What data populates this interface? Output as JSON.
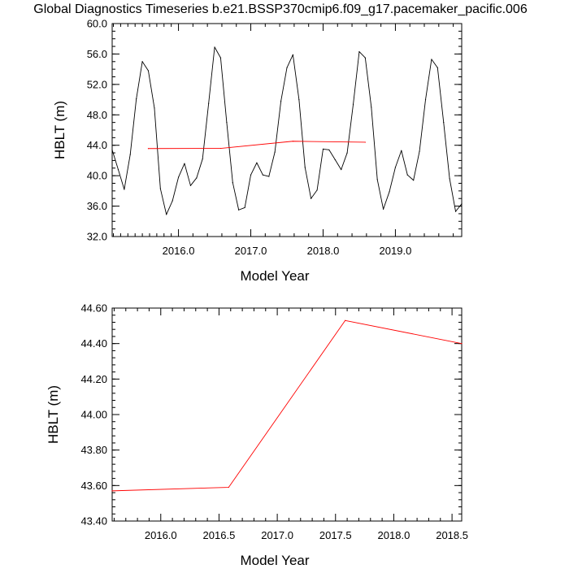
{
  "title": "Global Diagnostics Timeseries b.e21.BSSP370cmip6.f09_g17.pacemaker_pacific.006",
  "chart_data": [
    {
      "type": "line",
      "xlabel": "Model Year",
      "ylabel": "HBLT (m)",
      "xlim": [
        2015.083,
        2019.917
      ],
      "ylim": [
        32.0,
        60.0
      ],
      "x_ticks": [
        2016.0,
        2017.0,
        2018.0,
        2019.0
      ],
      "x_tick_labels": [
        "2016.0",
        "2017.0",
        "2018.0",
        "2019.0"
      ],
      "y_ticks": [
        32.0,
        36.0,
        40.0,
        44.0,
        48.0,
        52.0,
        56.0,
        60.0
      ],
      "y_tick_labels": [
        "32.0",
        "36.0",
        "40.0",
        "44.0",
        "48.0",
        "52.0",
        "56.0",
        "60.0"
      ],
      "grid": false,
      "series": [
        {
          "color": "#000000",
          "x": [
            2015.083,
            2015.167,
            2015.25,
            2015.333,
            2015.417,
            2015.5,
            2015.583,
            2015.667,
            2015.75,
            2015.833,
            2015.917,
            2016.0,
            2016.083,
            2016.167,
            2016.25,
            2016.333,
            2016.417,
            2016.5,
            2016.583,
            2016.667,
            2016.75,
            2016.833,
            2016.917,
            2017.0,
            2017.083,
            2017.167,
            2017.25,
            2017.333,
            2017.417,
            2017.5,
            2017.583,
            2017.667,
            2017.75,
            2017.833,
            2017.917,
            2018.0,
            2018.083,
            2018.167,
            2018.25,
            2018.333,
            2018.417,
            2018.5,
            2018.583,
            2018.667,
            2018.75,
            2018.833,
            2018.917,
            2019.0,
            2019.083,
            2019.167,
            2019.25,
            2019.333,
            2019.417,
            2019.5,
            2019.583,
            2019.667,
            2019.75,
            2019.833,
            2019.917
          ],
          "y": [
            43.4,
            40.8,
            38.2,
            42.8,
            50.1,
            55.0,
            53.8,
            48.9,
            38.3,
            34.9,
            36.7,
            39.8,
            41.6,
            38.7,
            39.7,
            42.2,
            49.5,
            56.9,
            55.5,
            47.0,
            39.1,
            35.5,
            35.8,
            40.1,
            41.7,
            40.1,
            39.9,
            43.1,
            49.8,
            54.2,
            55.9,
            50.0,
            41.1,
            37.0,
            38.1,
            43.5,
            43.4,
            42.1,
            40.8,
            43.0,
            49.4,
            56.3,
            55.5,
            49.0,
            39.5,
            35.6,
            37.9,
            41.1,
            43.3,
            40.1,
            39.4,
            43.2,
            50.0,
            55.3,
            54.2,
            47.0,
            39.6,
            35.3,
            36.3
          ]
        },
        {
          "color": "#ff0000",
          "x": [
            2015.583,
            2016.583,
            2017.583,
            2018.583
          ],
          "y": [
            43.57,
            43.59,
            44.53,
            44.4
          ]
        }
      ]
    },
    {
      "type": "line",
      "xlabel": "Model Year",
      "ylabel": "HBLT (m)",
      "xlim": [
        2015.583,
        2018.583
      ],
      "ylim": [
        43.4,
        44.6
      ],
      "x_ticks": [
        2016.0,
        2016.5,
        2017.0,
        2017.5,
        2018.0,
        2018.5
      ],
      "x_tick_labels": [
        "2016.0",
        "2016.5",
        "2017.0",
        "2017.5",
        "2018.0",
        "2018.5"
      ],
      "y_ticks": [
        43.4,
        43.6,
        43.8,
        44.0,
        44.2,
        44.4,
        44.6
      ],
      "y_tick_labels": [
        "43.40",
        "43.60",
        "43.80",
        "44.00",
        "44.20",
        "44.40",
        "44.60"
      ],
      "grid": false,
      "series": [
        {
          "color": "#ff0000",
          "x": [
            2015.583,
            2016.583,
            2017.583,
            2018.583
          ],
          "y": [
            43.57,
            43.59,
            44.53,
            44.4
          ]
        }
      ]
    }
  ]
}
